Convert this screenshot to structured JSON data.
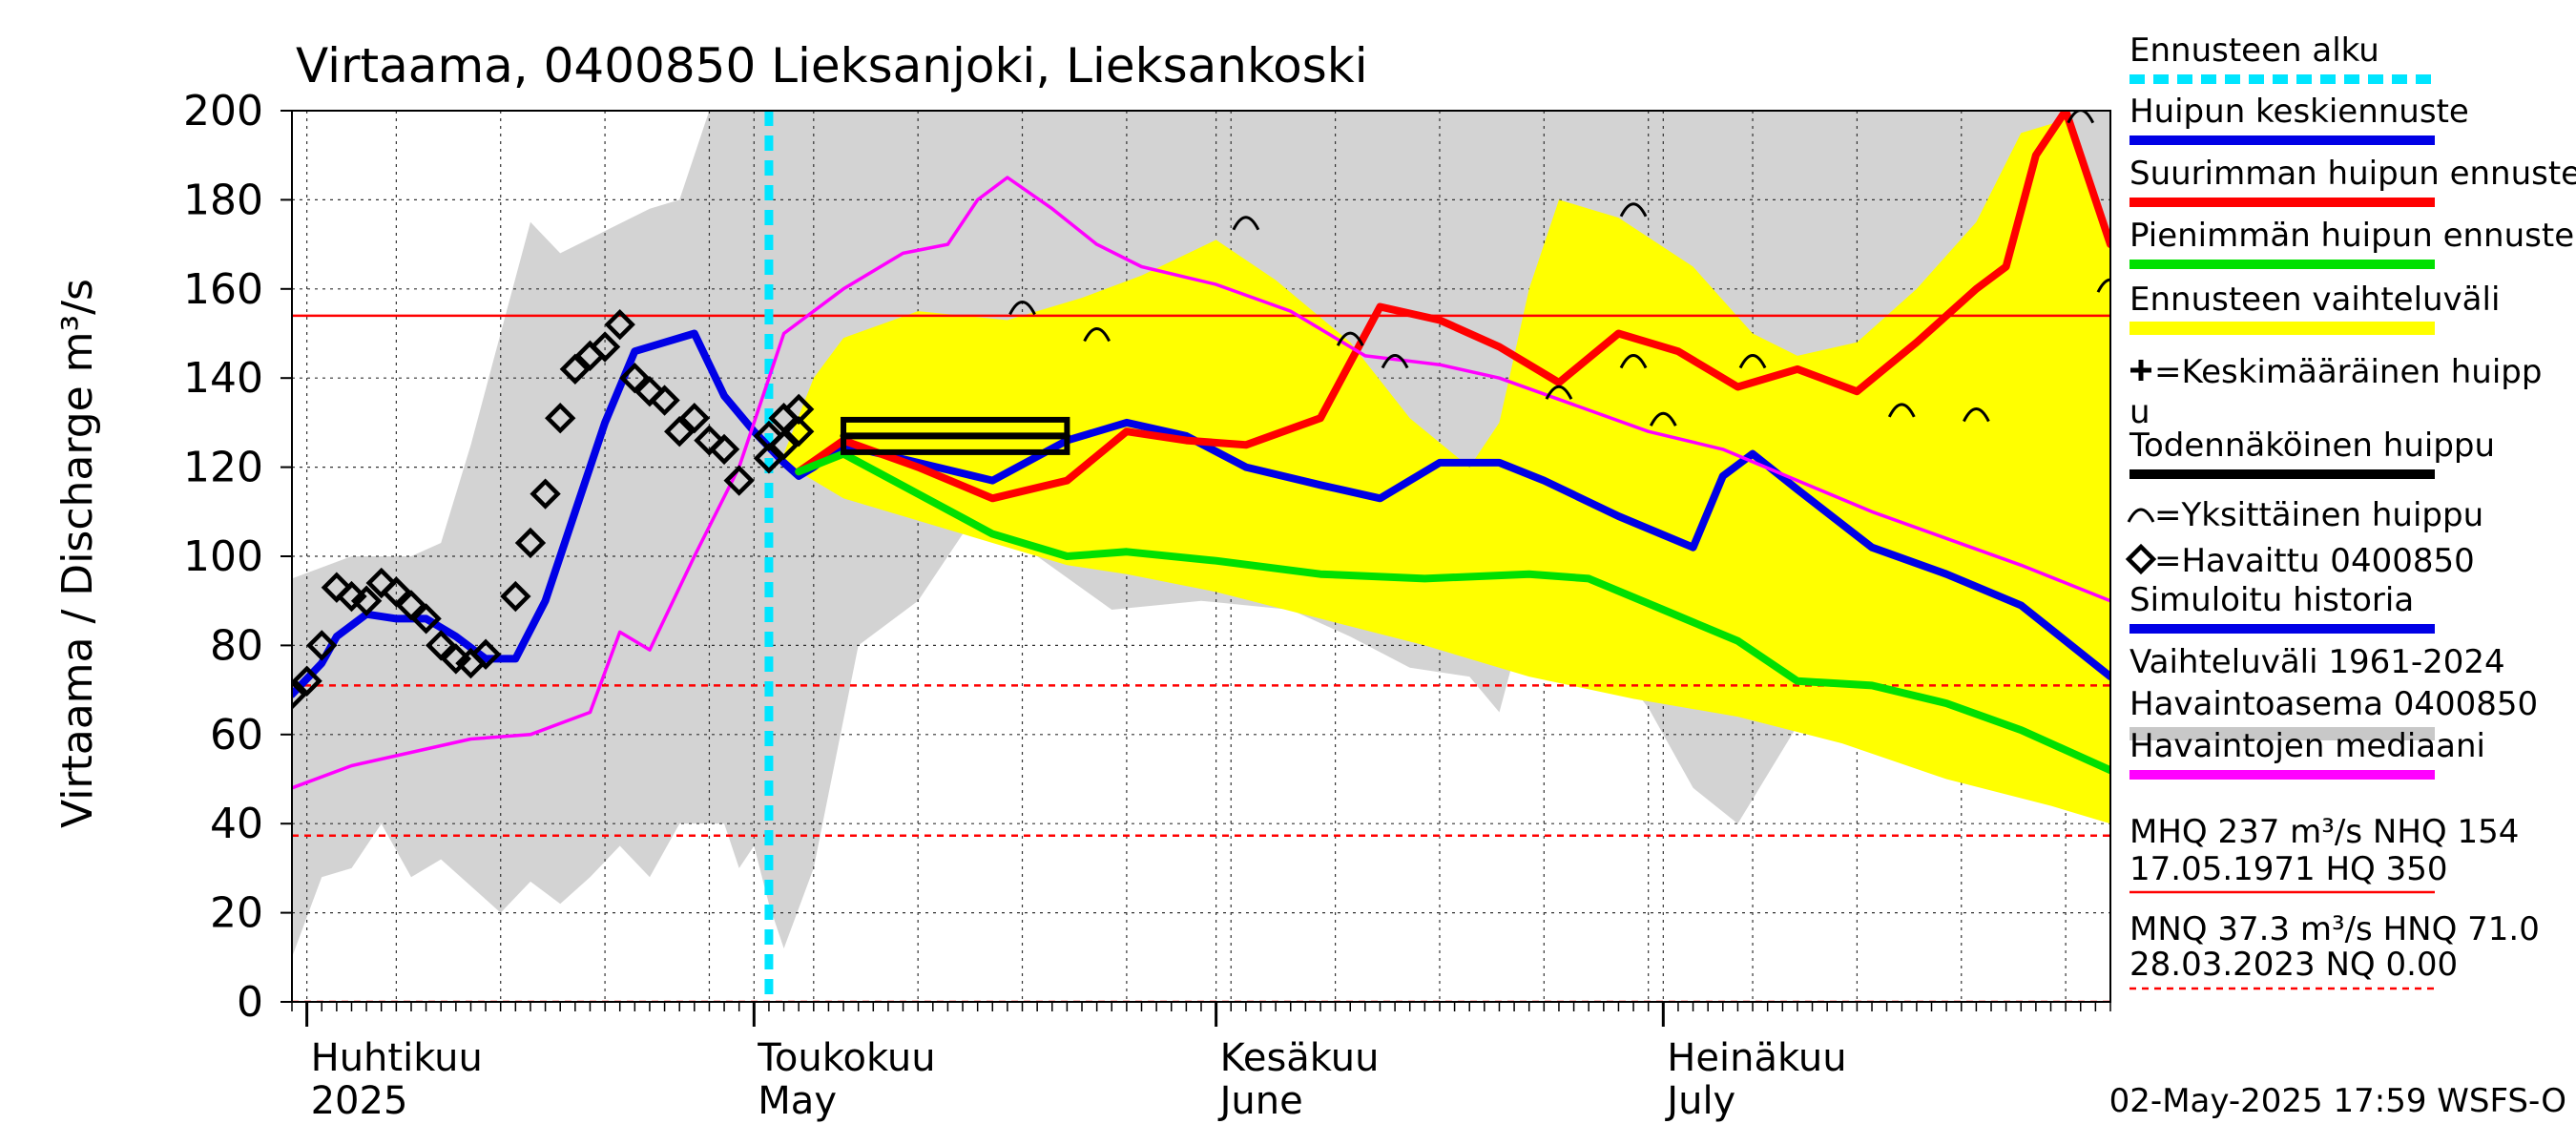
{
  "chart_data": {
    "type": "line",
    "title": "Virtaama, 0400850 Lieksanjoki, Lieksankoski",
    "ylabel": "Virtaama / Discharge   m³/s",
    "ylim": [
      0,
      200
    ],
    "yticks": [
      0,
      20,
      40,
      60,
      80,
      100,
      120,
      140,
      160,
      180,
      200
    ],
    "x_domain": [
      "2025-03-31",
      "2025-07-31"
    ],
    "x_months": [
      {
        "date": "2025-04-01",
        "fi": "Huhtikuu",
        "en": "2025"
      },
      {
        "date": "2025-05-01",
        "fi": "Toukokuu",
        "en": "May"
      },
      {
        "date": "2025-06-01",
        "fi": "Kesäkuu",
        "en": "June"
      },
      {
        "date": "2025-07-01",
        "fi": "Heinäkuu",
        "en": "July"
      }
    ],
    "forecast_start": "2025-05-02",
    "legend": [
      {
        "label": "Ennusteen alku",
        "color": "#00e5ff",
        "style": "dashed"
      },
      {
        "label": "Huipun keskiennuste",
        "color": "#0000e6",
        "style": "line"
      },
      {
        "label": "Suurimman huipun ennuste",
        "color": "#ff0000",
        "style": "line"
      },
      {
        "label": "Pienimmän huipun ennuste",
        "color": "#00e000",
        "style": "line"
      },
      {
        "label": "Ennusteen vaihteluväli",
        "color": "#ffff00",
        "style": "band"
      },
      {
        "label": "=Keskimääräinen huipp",
        "label2": "u",
        "color": "#000000",
        "style": "plus"
      },
      {
        "label": "Todennäköinen huippu",
        "color": "#000000",
        "style": "line"
      },
      {
        "label": "=Yksittäinen huippu",
        "color": "#000000",
        "style": "arc"
      },
      {
        "label": "=Havaittu 0400850",
        "color": "#000000",
        "style": "diamond"
      },
      {
        "label": "Simuloitu historia",
        "color": "#0000e6",
        "style": "line"
      },
      {
        "label": "Vaihteluväli 1961-2024",
        "label2": " Havaintoasema 0400850",
        "color": "#c8c8c8",
        "style": "band"
      },
      {
        "label": "Havaintojen mediaani",
        "color": "#ff00ff",
        "style": "line"
      }
    ],
    "stats": {
      "line1": "MHQ  237 m³/s NHQ  154",
      "line2": "17.05.1971 HQ  350",
      "line3": "MNQ 37.3 m³/s HNQ 71.0",
      "line4": "28.03.2023 NQ 0.00"
    },
    "reference_lines": [
      {
        "label": "NHQ",
        "value": 154,
        "color": "#ff0000",
        "style": "solid"
      },
      {
        "label": "HNQ",
        "value": 71.0,
        "color": "#ff0000",
        "style": "dashed"
      },
      {
        "label": "MNQ",
        "value": 37.3,
        "color": "#ff0000",
        "style": "dashed"
      },
      {
        "label": "NQ",
        "value": 0.0,
        "color": "#ff0000",
        "style": "dashed"
      }
    ],
    "footer": "02-May-2025 17:59 WSFS-O",
    "series": [
      {
        "name": "Simuloitu historia",
        "color": "#0000e6",
        "points": [
          [
            "2025-03-31",
            69
          ],
          [
            "2025-04-02",
            76
          ],
          [
            "2025-04-03",
            82
          ],
          [
            "2025-04-05",
            87
          ],
          [
            "2025-04-07",
            86
          ],
          [
            "2025-04-09",
            86
          ],
          [
            "2025-04-11",
            82
          ],
          [
            "2025-04-13",
            77
          ],
          [
            "2025-04-15",
            77
          ],
          [
            "2025-04-17",
            90
          ],
          [
            "2025-04-19",
            110
          ],
          [
            "2025-04-21",
            130
          ],
          [
            "2025-04-23",
            146
          ],
          [
            "2025-04-25",
            148
          ],
          [
            "2025-04-27",
            150
          ],
          [
            "2025-04-29",
            136
          ],
          [
            "2025-05-01",
            128
          ],
          [
            "2025-05-03",
            121
          ],
          [
            "2025-05-04",
            118
          ],
          [
            "2025-05-05",
            120
          ],
          [
            "2025-05-07",
            125
          ]
        ]
      },
      {
        "name": "Huipun keskiennuste",
        "color": "#0000e6",
        "points": [
          [
            "2025-05-04",
            119
          ],
          [
            "2025-05-07",
            125
          ],
          [
            "2025-05-12",
            121
          ],
          [
            "2025-05-17",
            117
          ],
          [
            "2025-05-22",
            126
          ],
          [
            "2025-05-26",
            130
          ],
          [
            "2025-05-30",
            127
          ],
          [
            "2025-06-03",
            120
          ],
          [
            "2025-06-08",
            116
          ],
          [
            "2025-06-12",
            113
          ],
          [
            "2025-06-16",
            121
          ],
          [
            "2025-06-20",
            121
          ],
          [
            "2025-06-23",
            117
          ],
          [
            "2025-06-28",
            109
          ],
          [
            "2025-07-03",
            102
          ],
          [
            "2025-07-05",
            118
          ],
          [
            "2025-07-07",
            123
          ],
          [
            "2025-07-10",
            115
          ],
          [
            "2025-07-15",
            102
          ],
          [
            "2025-07-20",
            96
          ],
          [
            "2025-07-25",
            89
          ],
          [
            "2025-07-31",
            73
          ]
        ]
      },
      {
        "name": "Suurimman huipun ennuste",
        "color": "#ff0000",
        "points": [
          [
            "2025-05-04",
            119
          ],
          [
            "2025-05-07",
            126
          ],
          [
            "2025-05-12",
            120
          ],
          [
            "2025-05-17",
            113
          ],
          [
            "2025-05-22",
            117
          ],
          [
            "2025-05-26",
            128
          ],
          [
            "2025-05-30",
            126
          ],
          [
            "2025-06-03",
            125
          ],
          [
            "2025-06-08",
            131
          ],
          [
            "2025-06-12",
            156
          ],
          [
            "2025-06-16",
            153
          ],
          [
            "2025-06-20",
            147
          ],
          [
            "2025-06-24",
            139
          ],
          [
            "2025-06-28",
            150
          ],
          [
            "2025-07-02",
            146
          ],
          [
            "2025-07-06",
            138
          ],
          [
            "2025-07-10",
            142
          ],
          [
            "2025-07-14",
            137
          ],
          [
            "2025-07-18",
            148
          ],
          [
            "2025-07-22",
            160
          ],
          [
            "2025-07-24",
            165
          ],
          [
            "2025-07-26",
            190
          ],
          [
            "2025-07-28",
            200
          ],
          [
            "2025-07-31",
            170
          ]
        ]
      },
      {
        "name": "Pienimmän huipun ennuste",
        "color": "#00e000",
        "points": [
          [
            "2025-05-04",
            119
          ],
          [
            "2025-05-07",
            123
          ],
          [
            "2025-05-12",
            114
          ],
          [
            "2025-05-17",
            105
          ],
          [
            "2025-05-22",
            100
          ],
          [
            "2025-05-26",
            101
          ],
          [
            "2025-06-01",
            99
          ],
          [
            "2025-06-08",
            96
          ],
          [
            "2025-06-15",
            95
          ],
          [
            "2025-06-22",
            96
          ],
          [
            "2025-06-26",
            95
          ],
          [
            "2025-07-01",
            88
          ],
          [
            "2025-07-06",
            81
          ],
          [
            "2025-07-10",
            72
          ],
          [
            "2025-07-15",
            71
          ],
          [
            "2025-07-20",
            67
          ],
          [
            "2025-07-25",
            61
          ],
          [
            "2025-07-31",
            52
          ]
        ]
      },
      {
        "name": "Havaintojen mediaani",
        "color": "#ff00ff",
        "points": [
          [
            "2025-03-31",
            48
          ],
          [
            "2025-04-04",
            53
          ],
          [
            "2025-04-08",
            56
          ],
          [
            "2025-04-12",
            59
          ],
          [
            "2025-04-16",
            60
          ],
          [
            "2025-04-20",
            65
          ],
          [
            "2025-04-22",
            83
          ],
          [
            "2025-04-24",
            79
          ],
          [
            "2025-04-27",
            100
          ],
          [
            "2025-04-30",
            120
          ],
          [
            "2025-05-03",
            150
          ],
          [
            "2025-05-07",
            160
          ],
          [
            "2025-05-11",
            168
          ],
          [
            "2025-05-14",
            170
          ],
          [
            "2025-05-16",
            180
          ],
          [
            "2025-05-18",
            185
          ],
          [
            "2025-05-21",
            178
          ],
          [
            "2025-05-24",
            170
          ],
          [
            "2025-05-27",
            165
          ],
          [
            "2025-06-01",
            161
          ],
          [
            "2025-06-06",
            155
          ],
          [
            "2025-06-11",
            145
          ],
          [
            "2025-06-16",
            143
          ],
          [
            "2025-06-20",
            140
          ],
          [
            "2025-06-25",
            134
          ],
          [
            "2025-06-30",
            128
          ],
          [
            "2025-07-05",
            124
          ],
          [
            "2025-07-10",
            117
          ],
          [
            "2025-07-15",
            110
          ],
          [
            "2025-07-20",
            104
          ],
          [
            "2025-07-25",
            98
          ],
          [
            "2025-07-31",
            90
          ]
        ]
      },
      {
        "name": "Todennäköinen huippu",
        "color": "#000000",
        "points": [
          [
            "2025-05-07",
            127
          ],
          [
            "2025-05-22",
            127
          ]
        ]
      }
    ],
    "observed": [
      [
        "2025-03-31",
        69
      ],
      [
        "2025-04-01",
        72
      ],
      [
        "2025-04-02",
        80
      ],
      [
        "2025-04-03",
        93
      ],
      [
        "2025-04-04",
        91
      ],
      [
        "2025-04-05",
        90
      ],
      [
        "2025-04-06",
        94
      ],
      [
        "2025-04-07",
        92
      ],
      [
        "2025-04-08",
        89
      ],
      [
        "2025-04-09",
        86
      ],
      [
        "2025-04-10",
        80
      ],
      [
        "2025-04-11",
        77
      ],
      [
        "2025-04-12",
        76
      ],
      [
        "2025-04-13",
        78
      ],
      [
        "2025-04-15",
        91
      ],
      [
        "2025-04-16",
        103
      ],
      [
        "2025-04-17",
        114
      ],
      [
        "2025-04-18",
        131
      ],
      [
        "2025-04-19",
        142
      ],
      [
        "2025-04-20",
        145
      ],
      [
        "2025-04-21",
        147
      ],
      [
        "2025-04-22",
        152
      ],
      [
        "2025-04-23",
        140
      ],
      [
        "2025-04-24",
        137
      ],
      [
        "2025-04-25",
        135
      ],
      [
        "2025-04-26",
        128
      ],
      [
        "2025-04-27",
        131
      ],
      [
        "2025-04-28",
        126
      ],
      [
        "2025-04-29",
        124
      ],
      [
        "2025-04-30",
        117
      ],
      [
        "2025-05-02",
        122
      ],
      [
        "2025-05-02",
        127
      ],
      [
        "2025-05-03",
        131
      ],
      [
        "2025-05-03",
        125
      ],
      [
        "2025-05-04",
        133
      ],
      [
        "2025-05-04",
        128
      ]
    ],
    "single_peaks": [
      [
        "2025-05-19",
        156
      ],
      [
        "2025-05-24",
        150
      ],
      [
        "2025-06-03",
        175
      ],
      [
        "2025-06-10",
        149
      ],
      [
        "2025-06-13",
        144
      ],
      [
        "2025-06-24",
        137
      ],
      [
        "2025-06-29",
        178
      ],
      [
        "2025-06-29",
        144
      ],
      [
        "2025-07-01",
        131
      ],
      [
        "2025-07-07",
        144
      ],
      [
        "2025-07-17",
        133
      ],
      [
        "2025-07-22",
        132
      ],
      [
        "2025-07-29",
        199
      ],
      [
        "2025-07-31",
        161
      ]
    ],
    "forecast_range": {
      "upper": [
        [
          "2025-05-03",
          123
        ],
        [
          "2025-05-05",
          140
        ],
        [
          "2025-05-07",
          149
        ],
        [
          "2025-05-12",
          155
        ],
        [
          "2025-05-18",
          153
        ],
        [
          "2025-05-23",
          158
        ],
        [
          "2025-05-27",
          163
        ],
        [
          "2025-06-01",
          171
        ],
        [
          "2025-06-05",
          162
        ],
        [
          "2025-06-10",
          148
        ],
        [
          "2025-06-14",
          131
        ],
        [
          "2025-06-18",
          120
        ],
        [
          "2025-06-20",
          130
        ],
        [
          "2025-06-22",
          160
        ],
        [
          "2025-06-24",
          180
        ],
        [
          "2025-06-28",
          176
        ],
        [
          "2025-07-03",
          165
        ],
        [
          "2025-07-07",
          150
        ],
        [
          "2025-07-10",
          145
        ],
        [
          "2025-07-14",
          148
        ],
        [
          "2025-07-18",
          160
        ],
        [
          "2025-07-22",
          175
        ],
        [
          "2025-07-25",
          195
        ],
        [
          "2025-07-28",
          198
        ],
        [
          "2025-07-31",
          172
        ]
      ],
      "lower": [
        [
          "2025-05-03",
          121
        ],
        [
          "2025-05-07",
          113
        ],
        [
          "2025-05-12",
          108
        ],
        [
          "2025-05-17",
          103
        ],
        [
          "2025-05-22",
          98
        ],
        [
          "2025-05-26",
          96
        ],
        [
          "2025-06-01",
          92
        ],
        [
          "2025-06-08",
          86
        ],
        [
          "2025-06-15",
          80
        ],
        [
          "2025-06-22",
          73
        ],
        [
          "2025-06-29",
          68
        ],
        [
          "2025-07-06",
          64
        ],
        [
          "2025-07-13",
          58
        ],
        [
          "2025-07-20",
          50
        ],
        [
          "2025-07-27",
          44
        ],
        [
          "2025-07-31",
          40
        ]
      ]
    },
    "historical_range": {
      "upper": [
        [
          "2025-03-31",
          95
        ],
        [
          "2025-04-04",
          100
        ],
        [
          "2025-04-08",
          100
        ],
        [
          "2025-04-10",
          103
        ],
        [
          "2025-04-12",
          125
        ],
        [
          "2025-04-14",
          150
        ],
        [
          "2025-04-16",
          175
        ],
        [
          "2025-04-18",
          168
        ],
        [
          "2025-04-21",
          173
        ],
        [
          "2025-04-24",
          178
        ],
        [
          "2025-04-26",
          180
        ],
        [
          "2025-04-28",
          200
        ],
        [
          "2025-07-31",
          200
        ]
      ],
      "lower": [
        [
          "2025-03-31",
          10
        ],
        [
          "2025-04-02",
          28
        ],
        [
          "2025-04-04",
          30
        ],
        [
          "2025-04-06",
          40
        ],
        [
          "2025-04-08",
          28
        ],
        [
          "2025-04-10",
          32
        ],
        [
          "2025-04-12",
          26
        ],
        [
          "2025-04-14",
          20
        ],
        [
          "2025-04-16",
          27
        ],
        [
          "2025-04-18",
          22
        ],
        [
          "2025-04-20",
          28
        ],
        [
          "2025-04-22",
          35
        ],
        [
          "2025-04-24",
          28
        ],
        [
          "2025-04-26",
          40
        ],
        [
          "2025-04-29",
          40
        ],
        [
          "2025-04-30",
          30
        ],
        [
          "2025-05-01",
          35
        ],
        [
          "2025-05-02",
          22
        ],
        [
          "2025-05-03",
          12
        ],
        [
          "2025-05-05",
          30
        ],
        [
          "2025-05-08",
          80
        ],
        [
          "2025-05-12",
          90
        ],
        [
          "2025-05-16",
          110
        ],
        [
          "2025-05-20",
          100
        ],
        [
          "2025-05-25",
          88
        ],
        [
          "2025-05-31",
          90
        ],
        [
          "2025-06-06",
          88
        ],
        [
          "2025-06-10",
          82
        ],
        [
          "2025-06-14",
          75
        ],
        [
          "2025-06-18",
          73
        ],
        [
          "2025-06-20",
          65
        ],
        [
          "2025-06-22",
          90
        ],
        [
          "2025-06-26",
          83
        ],
        [
          "2025-06-30",
          66
        ],
        [
          "2025-07-03",
          48
        ],
        [
          "2025-07-06",
          40
        ],
        [
          "2025-07-10",
          62
        ],
        [
          "2025-07-15",
          60
        ],
        [
          "2025-07-20",
          60
        ],
        [
          "2025-07-25",
          55
        ],
        [
          "2025-07-31",
          50
        ]
      ]
    }
  }
}
